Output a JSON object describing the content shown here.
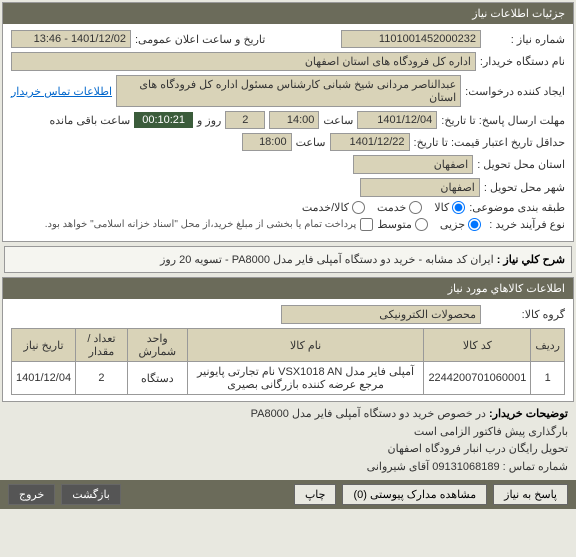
{
  "panel_title": "جزئیات اطلاعات نیاز",
  "labels": {
    "need_number": "شماره نیاز :",
    "announce_datetime": "تاریخ و ساعت اعلان عمومی:",
    "buyer_name": "نام دستگاه خریدار:",
    "requester": "ایجاد کننده درخواست:",
    "contact_link": "اطلاعات تماس خریدار",
    "deadline": "مهلت ارسال پاسخ: تا تاریخ:",
    "hour1": "ساعت",
    "day_and": "روز و",
    "remain": "ساعت باقی مانده",
    "validity": "حداقل تاریخ اعتبار قیمت: تا تاریخ:",
    "hour2": "ساعت",
    "delivery_city": "شهر محل تحویل :",
    "need_place": "استان محل تحویل :",
    "delivery_method": "طبقه بندی موضوعی:",
    "purchase_type": "نوع فرآیند خرید :",
    "note": "پرداخت تمام یا بخشی از مبلغ خرید،از محل \"اسناد خزانه اسلامی\" خواهد بود.",
    "desc_title": "شرح کلي نیاز :",
    "goods_info": "اطلاعات کالاهاي مورد نیاز",
    "goods_group": "گروه کالا:",
    "buyer_notes": "توضیحات خریدار:",
    "btn_reply": "پاسخ به نیاز",
    "btn_attach": "مشاهده مدارک پیوستی (0)",
    "btn_print": "چاپ",
    "btn_exit": "خروج",
    "btn_return": "بازگشت"
  },
  "values": {
    "need_number": "1101001452000232",
    "announce_datetime": "1401/12/02 - 13:46",
    "buyer_name": "اداره کل فرودگاه های استان اصفهان",
    "requester": "عبدالناصر مردانی شیخ شبانی کارشناس مسئول  اداره کل فرودگاه های استان",
    "deadline_date": "1401/12/04",
    "deadline_hour": "14:00",
    "days_remaining": "2",
    "countdown": "00:10:21",
    "validity_date": "1401/12/22",
    "validity_hour": "18:00",
    "city_province": "اصفهان",
    "city": "اصفهان",
    "goods_group_val": "محصولات الکترونیکی",
    "description": "ایران کد مشابه - خرید دو دستگاه آمپلی فایر مدل PA8000 - تسویه 20 روز",
    "buyer_notes_text": "در خصوص خرید دو دستگاه آمپلی فایر مدل PA8000\nبارگذاری پیش فاکتور الزامی است\nتحویل رایگان درب انبار فرودگاه اصفهان\nشماره تماس :   09131068189 آقای شیروانی"
  },
  "radios": {
    "group1": [
      {
        "label": "کالا",
        "checked": true
      },
      {
        "label": "خدمت",
        "checked": false
      },
      {
        "label": "کالا/خدمت",
        "checked": false
      }
    ],
    "group2": [
      {
        "label": "جزیی",
        "checked": true
      },
      {
        "label": "متوسط",
        "checked": false
      }
    ]
  },
  "table": {
    "headers": [
      "ردیف",
      "کد کالا",
      "نام کالا",
      "واحد شمارش",
      "تعداد / مقدار",
      "تاریخ نیاز"
    ],
    "rows": [
      [
        "1",
        "2244200701060001",
        "آمپلی فایر مدل VSX1018 AN نام تجارتی پایونیر مرجع عرضه کننده بازرگانی بصیری",
        "دستگاه",
        "2",
        "1401/12/04"
      ]
    ]
  }
}
